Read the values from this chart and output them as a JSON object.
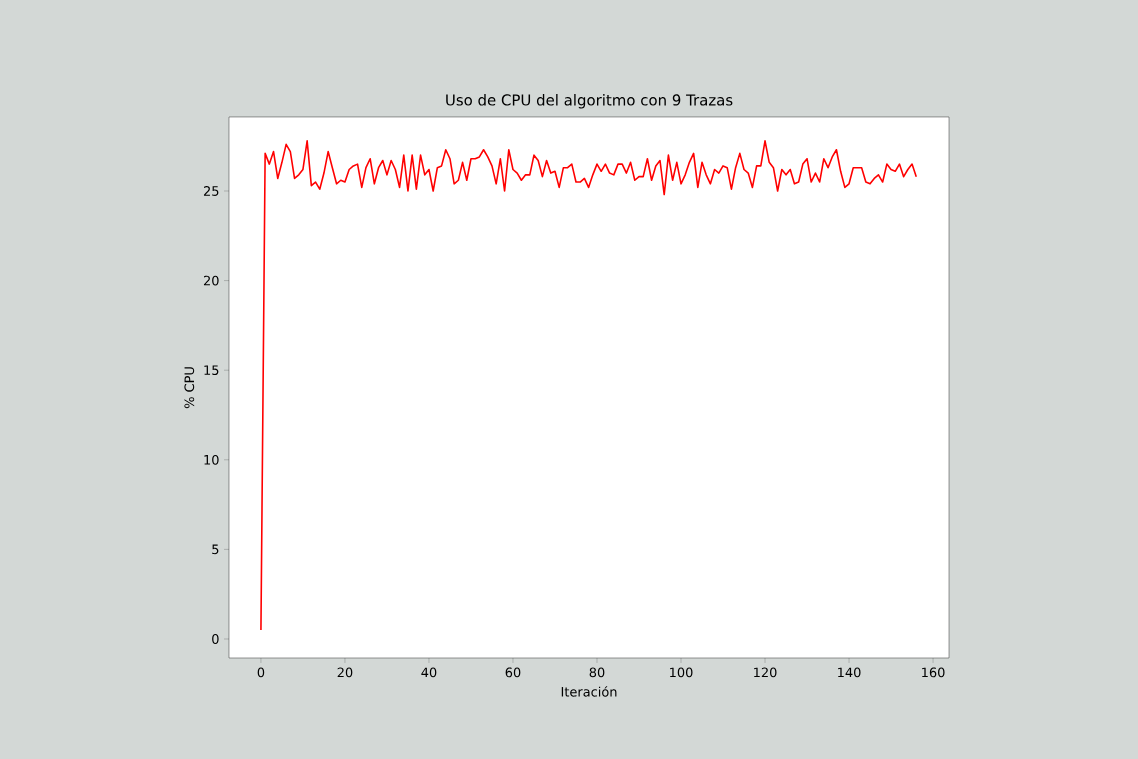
{
  "chart_data": {
    "type": "line",
    "title": "Uso de CPU del algoritmo con 9 Trazas",
    "xlabel": "Iteración",
    "ylabel": "% CPU",
    "x": [
      0,
      1,
      2,
      3,
      4,
      5,
      6,
      7,
      8,
      9,
      10,
      11,
      12,
      13,
      14,
      15,
      16,
      17,
      18,
      19,
      20,
      21,
      22,
      23,
      24,
      25,
      26,
      27,
      28,
      29,
      30,
      31,
      32,
      33,
      34,
      35,
      36,
      37,
      38,
      39,
      40,
      41,
      42,
      43,
      44,
      45,
      46,
      47,
      48,
      49,
      50,
      51,
      52,
      53,
      54,
      55,
      56,
      57,
      58,
      59,
      60,
      61,
      62,
      63,
      64,
      65,
      66,
      67,
      68,
      69,
      70,
      71,
      72,
      73,
      74,
      75,
      76,
      77,
      78,
      79,
      80,
      81,
      82,
      83,
      84,
      85,
      86,
      87,
      88,
      89,
      90,
      91,
      92,
      93,
      94,
      95,
      96,
      97,
      98,
      99,
      100,
      101,
      102,
      103,
      104,
      105,
      106,
      107,
      108,
      109,
      110,
      111,
      112,
      113,
      114,
      115,
      116,
      117,
      118,
      119,
      120,
      121,
      122,
      123,
      124,
      125,
      126,
      127,
      128,
      129,
      130,
      131,
      132,
      133,
      134,
      135,
      136,
      137,
      138,
      139,
      140,
      141,
      142,
      143,
      144,
      145,
      146,
      147,
      148,
      149,
      150,
      151,
      152,
      153,
      154,
      155,
      156
    ],
    "series": [
      {
        "color": "#ff0000",
        "values": [
          0.5,
          27.1,
          26.5,
          27.2,
          25.7,
          26.6,
          27.6,
          27.2,
          25.7,
          25.9,
          26.2,
          27.8,
          25.3,
          25.5,
          25.1,
          26.0,
          27.2,
          26.3,
          25.4,
          25.6,
          25.5,
          26.2,
          26.4,
          26.5,
          25.2,
          26.3,
          26.8,
          25.4,
          26.3,
          26.7,
          25.9,
          26.7,
          26.2,
          25.2,
          27.0,
          25.0,
          27.0,
          25.1,
          27.0,
          25.9,
          26.2,
          25.0,
          26.3,
          26.4,
          27.3,
          26.8,
          25.4,
          25.6,
          26.6,
          25.6,
          26.8,
          26.8,
          26.9,
          27.3,
          26.9,
          26.4,
          25.4,
          26.8,
          25.0,
          27.3,
          26.2,
          26.0,
          25.6,
          25.9,
          25.9,
          27.0,
          26.7,
          25.8,
          26.7,
          26.0,
          26.1,
          25.2,
          26.3,
          26.3,
          26.5,
          25.5,
          25.5,
          25.7,
          25.2,
          25.9,
          26.5,
          26.1,
          26.5,
          26.0,
          25.9,
          26.5,
          26.5,
          26.0,
          26.6,
          25.6,
          25.8,
          25.8,
          26.8,
          25.6,
          26.4,
          26.7,
          24.8,
          27.0,
          25.6,
          26.6,
          25.4,
          25.9,
          26.6,
          27.1,
          25.2,
          26.6,
          25.9,
          25.4,
          26.2,
          26.0,
          26.4,
          26.3,
          25.1,
          26.3,
          27.1,
          26.2,
          26.0,
          25.2,
          26.4,
          26.4,
          27.8,
          26.6,
          26.3,
          25.0,
          26.2,
          25.9,
          26.2,
          25.4,
          25.5,
          26.5,
          26.8,
          25.5,
          26.0,
          25.5,
          26.8,
          26.3,
          26.9,
          27.3,
          26.1,
          25.2,
          25.4,
          26.3,
          26.3,
          26.3,
          25.5,
          25.4,
          25.7,
          25.9,
          25.5,
          26.5,
          26.2,
          26.1,
          26.5,
          25.8,
          26.2,
          26.5,
          25.8
        ]
      }
    ],
    "xlim": [
      -7.6,
      163.8
    ],
    "ylim": [
      -1.06,
      29.13
    ],
    "xticks": [
      0,
      20,
      40,
      60,
      80,
      100,
      120,
      140,
      160
    ],
    "yticks": [
      0,
      5,
      10,
      15,
      20,
      25
    ],
    "grid": false,
    "marker": "none",
    "line_style": "solid"
  }
}
